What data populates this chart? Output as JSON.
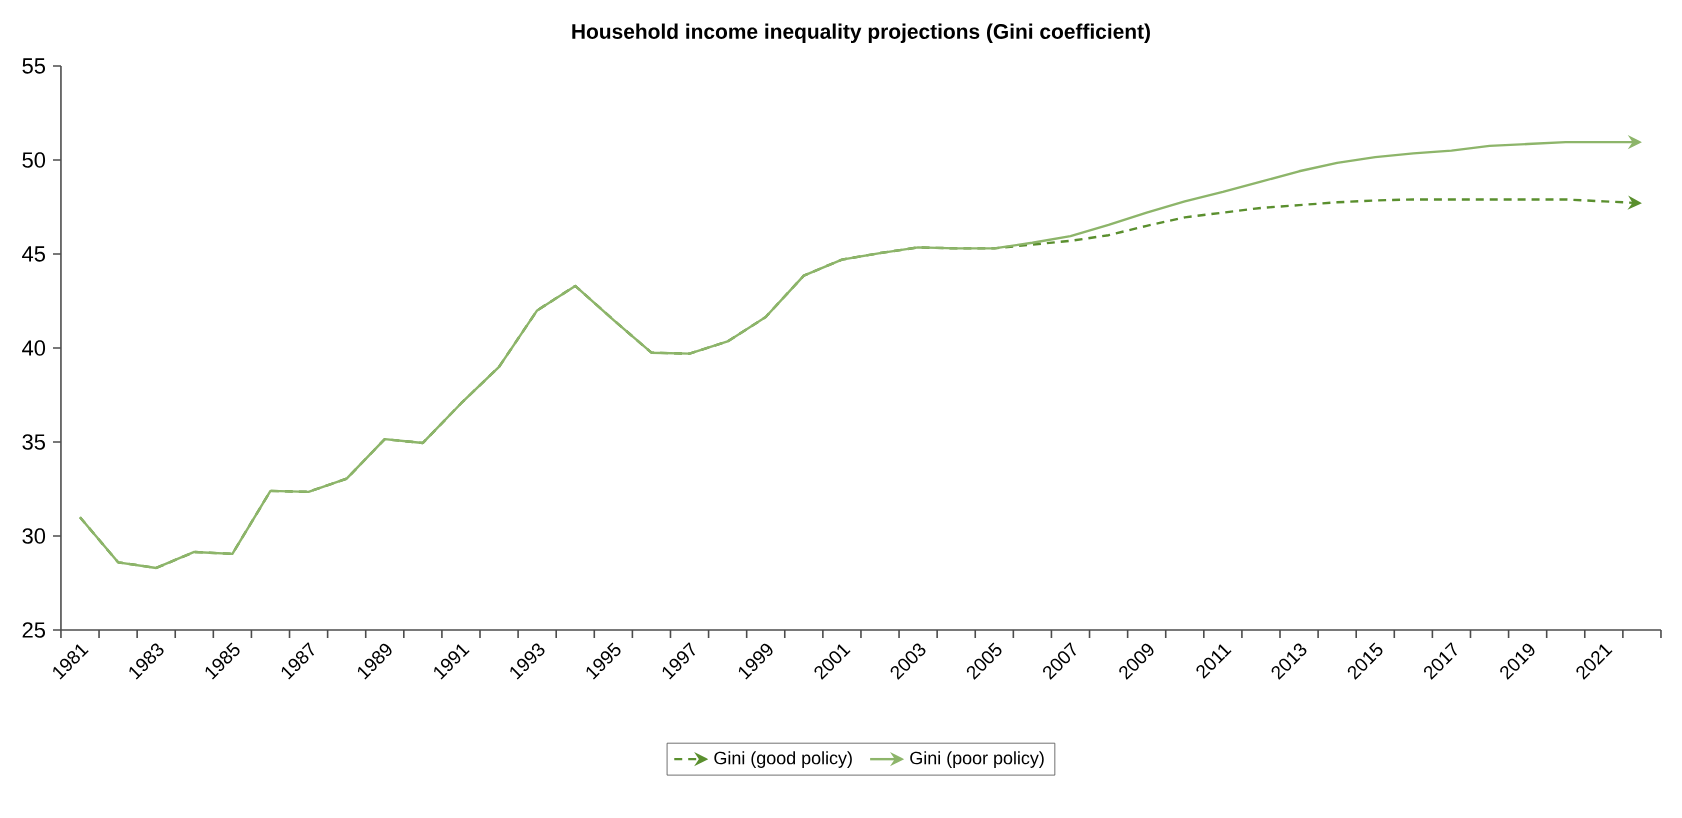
{
  "chart_data": {
    "type": "line",
    "title": "Household income inequality projections (Gini coefficient)",
    "categories": [
      "1981",
      null,
      "1983",
      null,
      "1985",
      null,
      "1987",
      null,
      "1989",
      null,
      "1991",
      null,
      "1993",
      null,
      "1995",
      null,
      "1997",
      null,
      "1999",
      null,
      "2001",
      null,
      "2003",
      null,
      "2005",
      null,
      "2007",
      null,
      "2009",
      null,
      "2011",
      null,
      "2013",
      null,
      "2015",
      null,
      "2017",
      null,
      "2019",
      null,
      "2021",
      null
    ],
    "series": [
      {
        "name": "Gini (good policy)",
        "color": "#5a8f2e",
        "line_style": "dashed",
        "values": [
          31.0,
          28.6,
          28.3,
          29.15,
          29.05,
          32.4,
          32.35,
          33.05,
          35.15,
          34.95,
          37.05,
          39.0,
          42.0,
          43.3,
          41.5,
          39.75,
          39.7,
          40.35,
          41.65,
          43.85,
          44.7,
          45.05,
          45.35,
          45.3,
          45.3,
          45.5,
          45.7,
          46.0,
          46.5,
          46.95,
          47.2,
          47.45,
          47.6,
          47.75,
          47.85,
          47.9,
          47.9,
          47.9,
          47.9,
          47.9,
          47.8,
          47.7
        ]
      },
      {
        "name": "Gini (poor policy)",
        "color": "#8db56a",
        "line_style": "solid",
        "values": [
          31.0,
          28.6,
          28.3,
          29.15,
          29.05,
          32.4,
          32.35,
          33.05,
          35.15,
          34.95,
          37.05,
          39.0,
          42.0,
          43.3,
          41.5,
          39.75,
          39.7,
          40.35,
          41.65,
          43.85,
          44.7,
          45.05,
          45.35,
          45.3,
          45.3,
          45.6,
          45.95,
          46.55,
          47.2,
          47.8,
          48.3,
          48.85,
          49.4,
          49.85,
          50.15,
          50.35,
          50.5,
          50.75,
          50.85,
          50.95,
          50.95,
          50.95
        ]
      }
    ],
    "ylim": [
      25,
      55
    ],
    "yticks": [
      25,
      30,
      35,
      40,
      45,
      50,
      55
    ],
    "grid": false,
    "legend": "bottom",
    "marker": "none"
  }
}
